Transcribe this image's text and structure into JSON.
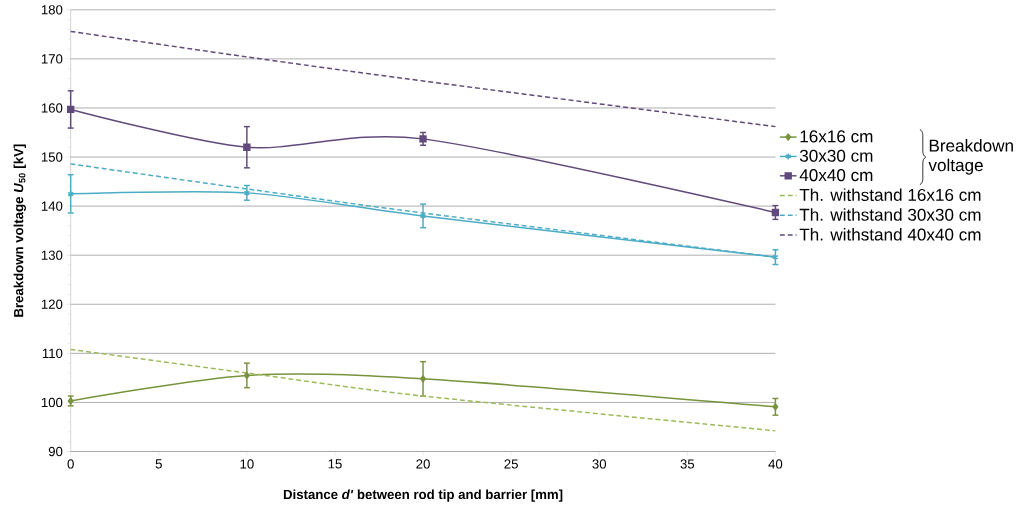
{
  "chart_data": {
    "type": "line",
    "xlabel": "Distance *d'* between rod tip and barrier [mm]",
    "ylabel": "Breakdown voltage *U*$_{50}$ [kV]",
    "x": [
      0,
      10,
      20,
      40
    ],
    "xlim": [
      0,
      40
    ],
    "xticks": [
      0,
      5,
      10,
      15,
      20,
      25,
      30,
      35,
      40
    ],
    "ylim": [
      90,
      180
    ],
    "yticks": [
      90,
      100,
      110,
      120,
      130,
      140,
      150,
      160,
      170,
      180
    ],
    "grid": "y",
    "legend": "right",
    "annotations": [
      "Breakdown voltage"
    ],
    "series": [
      {
        "name": "16x16 cm",
        "color": "#77933c",
        "values": [
          100.3,
          105.5,
          104.8,
          99.1
        ],
        "errors": [
          1,
          2.5,
          3.5,
          1.7
        ],
        "marker": "diamond",
        "line_style": "solid"
      },
      {
        "name": "30x30 cm",
        "color": "#4bacc6",
        "values": [
          142.5,
          142.7,
          138,
          129.6
        ],
        "errors": [
          3.9,
          1.5,
          2.4,
          1.5
        ],
        "marker": "cross",
        "line_style": "solid"
      },
      {
        "name": "40x40 cm",
        "color": "#604a7b",
        "values": [
          159.7,
          152,
          153.7,
          138.7
        ],
        "errors": [
          3.8,
          4.2,
          1.3,
          1.4
        ],
        "marker": "square",
        "line_style": "solid"
      },
      {
        "name": "Th. withstand 16x16 cm",
        "color": "#9bbb59",
        "values": [
          110.8,
          106,
          101.3,
          94.2
        ],
        "marker": "none",
        "line_style": "dashed"
      },
      {
        "name": "Th. withstand 30x30 cm",
        "color": "#4bacc6",
        "values": [
          148.6,
          143.5,
          138.6,
          129.6
        ],
        "marker": "none",
        "line_style": "dashed"
      },
      {
        "name": "Th. withstand 40x40 cm",
        "color": "#604a7b",
        "values": [
          175.6,
          170.4,
          165.5,
          156.2
        ],
        "marker": "none",
        "line_style": "dashed"
      }
    ]
  }
}
